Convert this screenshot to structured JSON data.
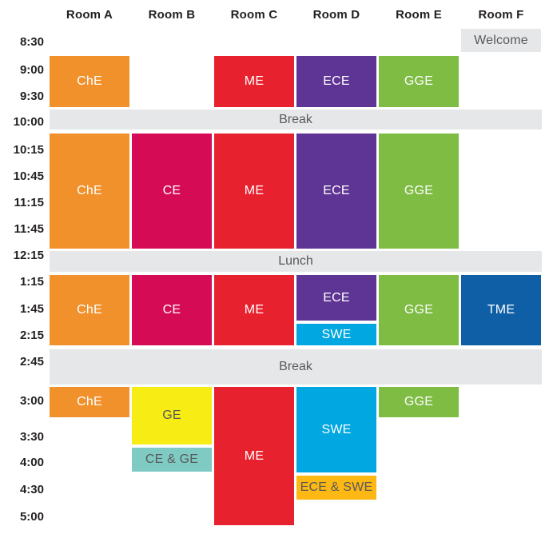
{
  "colors": {
    "che": "#F0912B",
    "ce": "#D60B56",
    "me": "#E8212E",
    "ece": "#5E3594",
    "gge": "#7EBC43",
    "swe": "#00A7E1",
    "tme": "#0F5FA6",
    "ge": "#F7EC13",
    "ce_ge": "#7FCBC4",
    "ece_swe": "#FDB813",
    "band_bg": "#E6E7E8",
    "dark_text": "#58595B",
    "light_text": "#FFFFFF",
    "heading_text": "#231F20"
  },
  "chart_data": {
    "type": "table",
    "title": "",
    "columns": [
      "Room A",
      "Room B",
      "Room C",
      "Room D",
      "Room E",
      "Room F"
    ],
    "time_labels": [
      "8:30",
      "9:00",
      "9:30",
      "10:00",
      "10:15",
      "10:45",
      "11:15",
      "11:45",
      "12:15",
      "1:15",
      "1:45",
      "2:15",
      "2:45",
      "3:00",
      "3:30",
      "4:00",
      "4:30",
      "5:00"
    ],
    "grid": "off",
    "legend_position": "none",
    "bands": [
      {
        "label": "Break",
        "at": "10:00",
        "span": "break1"
      },
      {
        "label": "Lunch",
        "at": "12:15",
        "span": "lunch"
      },
      {
        "label": "Break",
        "at": "2:45",
        "span": "break2"
      }
    ],
    "sessions": [
      {
        "label": "Welcome",
        "room": "Room F",
        "slots": [
          "8:30"
        ],
        "span": "welcome",
        "color": "band_bg",
        "text": "dark_text"
      },
      {
        "label": "ChE",
        "room": "Room A",
        "slots": [
          "9:00",
          "9:30"
        ],
        "span": "morning",
        "color": "che",
        "text": "light_text"
      },
      {
        "label": "ME",
        "room": "Room C",
        "slots": [
          "9:00",
          "9:30"
        ],
        "span": "morning",
        "color": "me",
        "text": "light_text"
      },
      {
        "label": "ECE",
        "room": "Room D",
        "slots": [
          "9:00",
          "9:30"
        ],
        "span": "morning",
        "color": "ece",
        "text": "light_text"
      },
      {
        "label": "GGE",
        "room": "Room E",
        "slots": [
          "9:00",
          "9:30"
        ],
        "span": "morning",
        "color": "gge",
        "text": "light_text"
      },
      {
        "label": "ChE",
        "room": "Room A",
        "slots": [
          "10:15",
          "10:45",
          "11:15",
          "11:45"
        ],
        "span": "midmorning",
        "color": "che",
        "text": "light_text"
      },
      {
        "label": "CE",
        "room": "Room B",
        "slots": [
          "10:15",
          "10:45",
          "11:15",
          "11:45"
        ],
        "span": "midmorning",
        "color": "ce",
        "text": "light_text"
      },
      {
        "label": "ME",
        "room": "Room C",
        "slots": [
          "10:15",
          "10:45",
          "11:15",
          "11:45"
        ],
        "span": "midmorning",
        "color": "me",
        "text": "light_text"
      },
      {
        "label": "ECE",
        "room": "Room D",
        "slots": [
          "10:15",
          "10:45",
          "11:15",
          "11:45"
        ],
        "span": "midmorning",
        "color": "ece",
        "text": "light_text"
      },
      {
        "label": "GGE",
        "room": "Room E",
        "slots": [
          "10:15",
          "10:45",
          "11:15",
          "11:45"
        ],
        "span": "midmorning",
        "color": "gge",
        "text": "light_text"
      },
      {
        "label": "ChE",
        "room": "Room A",
        "slots": [
          "1:15",
          "1:45",
          "2:15"
        ],
        "span": "afternoon",
        "color": "che",
        "text": "light_text"
      },
      {
        "label": "CE",
        "room": "Room B",
        "slots": [
          "1:15",
          "1:45",
          "2:15"
        ],
        "span": "afternoon",
        "color": "ce",
        "text": "light_text"
      },
      {
        "label": "ME",
        "room": "Room C",
        "slots": [
          "1:15",
          "1:45",
          "2:15"
        ],
        "span": "afternoon",
        "color": "me",
        "text": "light_text"
      },
      {
        "label": "ECE",
        "room": "Room D",
        "slots": [
          "1:15",
          "1:45"
        ],
        "span": "afternoon_top",
        "color": "ece",
        "text": "light_text"
      },
      {
        "label": "SWE",
        "room": "Room D",
        "slots": [
          "2:15"
        ],
        "span": "afternoon_bottom",
        "color": "swe",
        "text": "light_text"
      },
      {
        "label": "GGE",
        "room": "Room E",
        "slots": [
          "1:15",
          "1:45",
          "2:15"
        ],
        "span": "afternoon",
        "color": "gge",
        "text": "light_text"
      },
      {
        "label": "TME",
        "room": "Room F",
        "slots": [
          "1:15",
          "1:45",
          "2:15"
        ],
        "span": "afternoon",
        "color": "tme",
        "text": "light_text"
      },
      {
        "label": "ChE",
        "room": "Room A",
        "slots": [
          "3:00"
        ],
        "span": "late_short",
        "color": "che",
        "text": "light_text"
      },
      {
        "label": "GE",
        "room": "Room B",
        "slots": [
          "3:00",
          "3:30"
        ],
        "span": "late_ge",
        "color": "ge",
        "text": "dark_text"
      },
      {
        "label": "CE & GE",
        "room": "Room B",
        "slots": [
          "4:00"
        ],
        "span": "late_cege",
        "color": "ce_ge",
        "text": "dark_text"
      },
      {
        "label": "ME",
        "room": "Room C",
        "slots": [
          "3:00",
          "3:30",
          "4:00",
          "4:30",
          "5:00"
        ],
        "span": "late_me",
        "color": "me",
        "text": "light_text"
      },
      {
        "label": "SWE",
        "room": "Room D",
        "slots": [
          "3:00",
          "3:30",
          "4:00"
        ],
        "span": "late_swe",
        "color": "swe",
        "text": "light_text"
      },
      {
        "label": "ECE & SWE",
        "room": "Room D",
        "slots": [
          "4:30"
        ],
        "span": "late_eceswe",
        "color": "ece_swe",
        "text": "dark_text"
      },
      {
        "label": "GGE",
        "room": "Room E",
        "slots": [
          "3:00"
        ],
        "span": "late_short",
        "color": "gge",
        "text": "light_text"
      }
    ]
  }
}
